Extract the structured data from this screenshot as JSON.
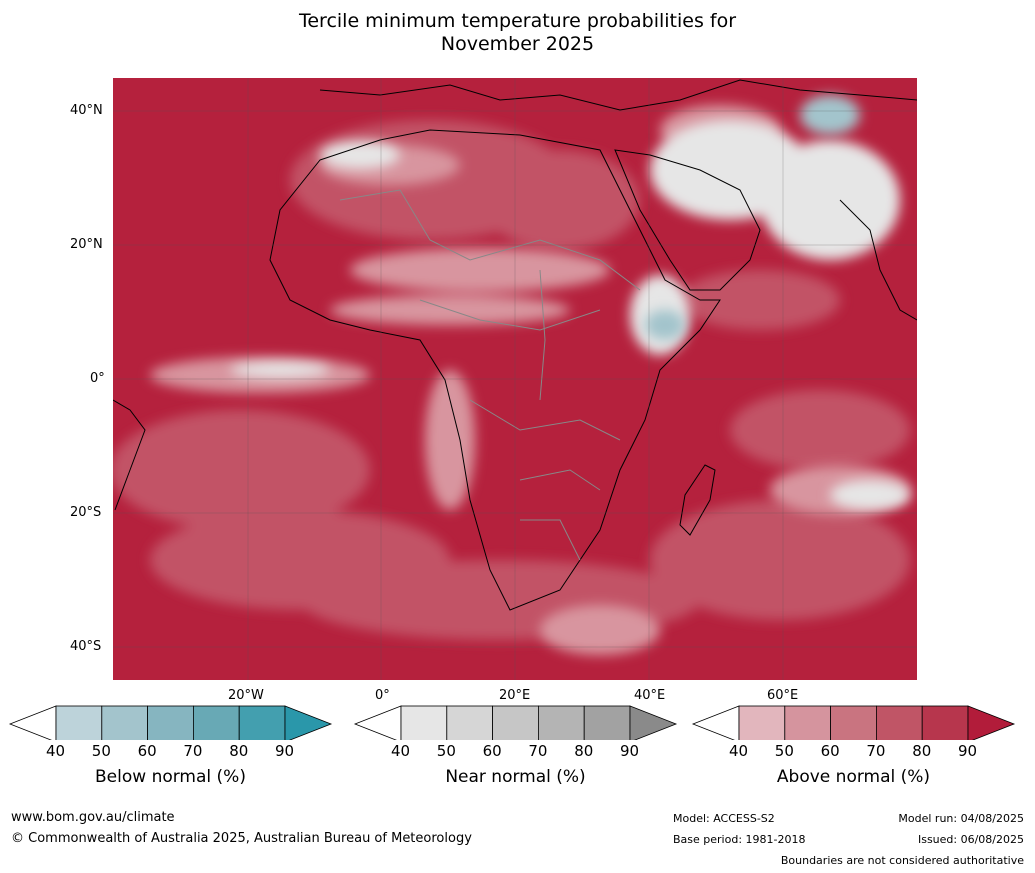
{
  "title_line1": "Tercile minimum temperature probabilities for",
  "title_line2": "November 2025",
  "lat_labels": [
    "40°N",
    "20°N",
    "0°",
    "20°S",
    "40°S"
  ],
  "lon_labels": [
    "20°W",
    "0°",
    "20°E",
    "40°E",
    "60°E"
  ],
  "legends": [
    {
      "label": "Below normal (%)",
      "ticks": [
        "40",
        "50",
        "60",
        "70",
        "80",
        "90"
      ],
      "colors": [
        "#bdd3da",
        "#a3c4cc",
        "#86b5c0",
        "#68a9b5",
        "#439faf",
        "#2a97aa"
      ]
    },
    {
      "label": "Near normal (%)",
      "ticks": [
        "40",
        "50",
        "60",
        "70",
        "80",
        "90"
      ],
      "colors": [
        "#e6e6e6",
        "#d6d6d6",
        "#c6c6c6",
        "#b4b4b4",
        "#a2a2a2",
        "#8a8a8a"
      ]
    },
    {
      "label": "Above normal (%)",
      "ticks": [
        "40",
        "50",
        "60",
        "70",
        "80",
        "90"
      ],
      "colors": [
        "#e2b6bd",
        "#d5949e",
        "#c97480",
        "#c05566",
        "#b7364d",
        "#b21c3a"
      ]
    }
  ],
  "footer": {
    "url": "www.bom.gov.au/climate",
    "copyright": "© Commonwealth of Australia 2025, Australian Bureau of Meteorology",
    "model": "Model: ACCESS-S2",
    "base_period": "Base period: 1981-2018",
    "model_run": "Model run: 04/08/2025",
    "issued": "Issued: 06/08/2025",
    "disclaimer": "Boundaries are not considered authoritative"
  }
}
